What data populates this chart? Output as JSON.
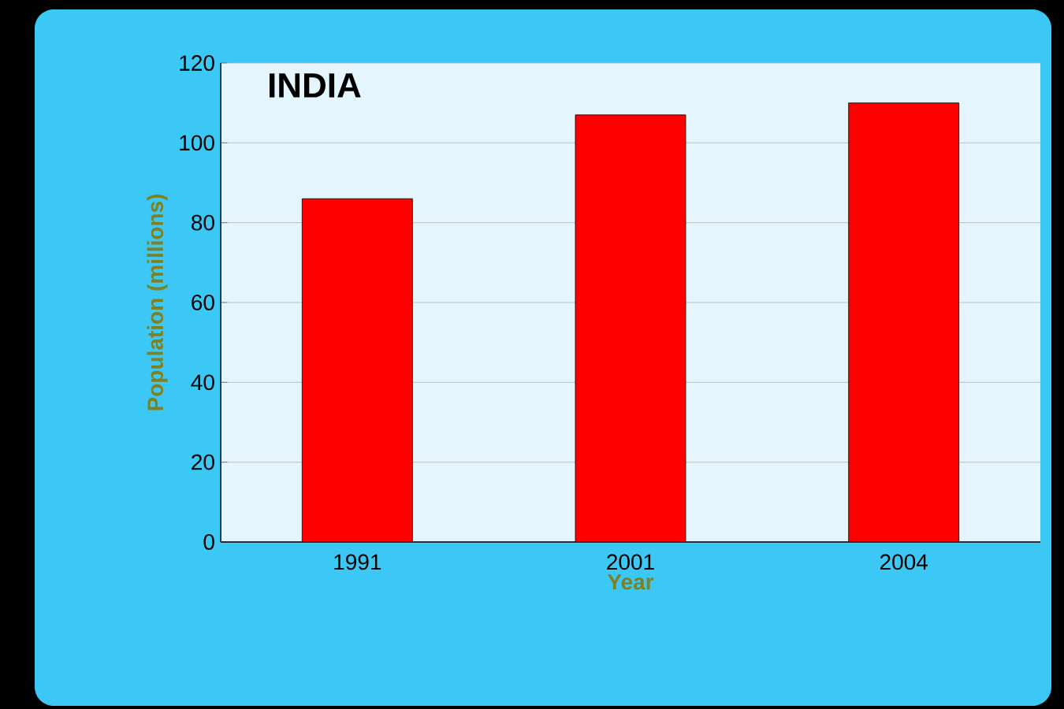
{
  "chart_data": {
    "type": "bar",
    "title": "INDIA",
    "xlabel": "Year",
    "ylabel": "Population (millions)",
    "categories": [
      "1991",
      "2001",
      "2004"
    ],
    "values": [
      86,
      107,
      110
    ],
    "color": "#ff0000",
    "ylim": [
      0,
      120
    ],
    "yticks": [
      0,
      20,
      40,
      60,
      80,
      100,
      120
    ],
    "grid": "y"
  }
}
